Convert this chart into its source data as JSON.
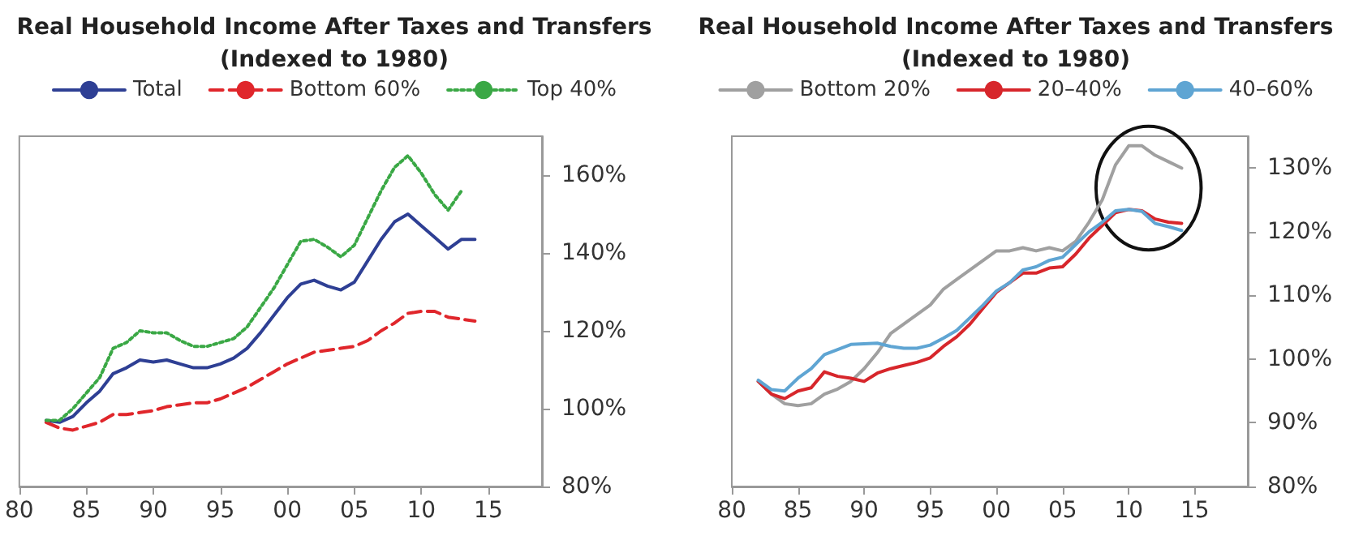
{
  "chart_data": [
    {
      "type": "line",
      "title": "Real Household Income After Taxes and Transfers\n(Indexed to 1980)",
      "x": [
        1982,
        1983,
        1984,
        1985,
        1986,
        1987,
        1988,
        1989,
        1990,
        1991,
        1992,
        1993,
        1994,
        1995,
        1996,
        1997,
        1998,
        1999,
        2000,
        2001,
        2002,
        2003,
        2004,
        2005,
        2006,
        2007,
        2008,
        2009,
        2010,
        2011,
        2012,
        2013,
        2014
      ],
      "series": [
        {
          "name": "Total",
          "color": "#2e3f94",
          "line_style": "solid",
          "values": [
            97,
            96.5,
            98,
            101.5,
            104.5,
            109,
            110.5,
            112.5,
            112,
            112.5,
            111.5,
            110.5,
            110.5,
            111.5,
            113,
            115.5,
            119.5,
            124,
            128.5,
            132,
            133,
            131.5,
            130.5,
            132.5,
            138,
            143.5,
            148,
            150,
            147,
            144,
            141,
            143.5,
            143.5
          ]
        },
        {
          "name": "Bottom 60%",
          "color": "#e0262b",
          "line_style": "dashed",
          "values": [
            96.5,
            95,
            94.5,
            95.5,
            96.5,
            98.5,
            98.5,
            99,
            99.5,
            100.5,
            101,
            101.5,
            101.5,
            102.5,
            104,
            105.5,
            107.5,
            109.5,
            111.5,
            113,
            114.5,
            115,
            115.5,
            116,
            117.5,
            120,
            122,
            124.5,
            125,
            125,
            123.5,
            123,
            122.5
          ]
        },
        {
          "name": "Top 40%",
          "color": "#3aa845",
          "line_style": "dotted",
          "values": [
            97,
            97,
            100,
            104,
            108,
            115.5,
            117,
            120,
            119.5,
            119.5,
            117.5,
            116,
            116,
            117,
            118,
            121,
            126,
            131,
            137,
            143,
            143.5,
            141.5,
            139,
            142,
            149,
            156,
            162,
            165,
            160.5,
            155,
            151,
            156,
            null
          ]
        }
      ],
      "xlim": [
        1980,
        2019
      ],
      "xticks": [
        {
          "value": 1980,
          "label": "80"
        },
        {
          "value": 1985,
          "label": "85"
        },
        {
          "value": 1990,
          "label": "90"
        },
        {
          "value": 1995,
          "label": "95"
        },
        {
          "value": 2000,
          "label": "00"
        },
        {
          "value": 2005,
          "label": "05"
        },
        {
          "value": 2010,
          "label": "10"
        },
        {
          "value": 2015,
          "label": "15"
        }
      ],
      "ylim": [
        80,
        170
      ],
      "yticks": [
        {
          "value": 80,
          "label": "80%"
        },
        {
          "value": 100,
          "label": "100%"
        },
        {
          "value": 120,
          "label": "120%"
        },
        {
          "value": 140,
          "label": "140%"
        },
        {
          "value": 160,
          "label": "160%"
        }
      ],
      "grid": false,
      "legend": "top"
    },
    {
      "type": "line",
      "title": "Real Household Income After Taxes and Transfers\n(Indexed to 1980)",
      "x": [
        1982,
        1983,
        1984,
        1985,
        1986,
        1987,
        1988,
        1989,
        1990,
        1991,
        1992,
        1993,
        1994,
        1995,
        1996,
        1997,
        1998,
        1999,
        2000,
        2001,
        2002,
        2003,
        2004,
        2005,
        2006,
        2007,
        2008,
        2009,
        2010,
        2011,
        2012,
        2013,
        2014
      ],
      "series": [
        {
          "name": "Bottom 20%",
          "color": "#a0a0a0",
          "line_style": "solid",
          "values": [
            96.5,
            94.5,
            93,
            92.7,
            93,
            94.5,
            95.3,
            96.5,
            98.5,
            101,
            104,
            105.5,
            107,
            108.5,
            111,
            112.5,
            114,
            115.5,
            117,
            117,
            117.5,
            117,
            117.5,
            117,
            118.5,
            121.5,
            125,
            130.5,
            133.5,
            133.5,
            132,
            131,
            130
          ]
        },
        {
          "name": "20–40%",
          "color": "#d7262b",
          "line_style": "solid",
          "values": [
            96.5,
            94.5,
            93.8,
            95,
            95.5,
            98,
            97.3,
            97,
            96.5,
            97.8,
            98.5,
            99,
            99.5,
            100.2,
            102,
            103.5,
            105.5,
            108,
            110.5,
            112,
            113.5,
            113.5,
            114.3,
            114.5,
            116.5,
            119,
            121,
            123,
            123.5,
            123.3,
            122,
            121.5,
            121.3
          ]
        },
        {
          "name": "40–60%",
          "color": "#5fa5d3",
          "line_style": "solid",
          "values": [
            96.7,
            95.2,
            95,
            97,
            98.5,
            100.7,
            101.5,
            102.3,
            102.4,
            102.5,
            102,
            101.7,
            101.7,
            102.2,
            103.3,
            104.5,
            106.5,
            108.5,
            110.7,
            112,
            114,
            114.5,
            115.5,
            116,
            118,
            120,
            121.5,
            123.3,
            123.5,
            123.2,
            121.3,
            120.8,
            120.2
          ]
        }
      ],
      "xlim": [
        1980,
        2019
      ],
      "xticks": [
        {
          "value": 1980,
          "label": "80"
        },
        {
          "value": 1985,
          "label": "85"
        },
        {
          "value": 1990,
          "label": "90"
        },
        {
          "value": 1995,
          "label": "95"
        },
        {
          "value": 2000,
          "label": "00"
        },
        {
          "value": 2005,
          "label": "05"
        },
        {
          "value": 2010,
          "label": "10"
        },
        {
          "value": 2015,
          "label": "15"
        }
      ],
      "ylim": [
        80,
        135
      ],
      "yticks": [
        {
          "value": 80,
          "label": "80%"
        },
        {
          "value": 90,
          "label": "90%"
        },
        {
          "value": 100,
          "label": "100%"
        },
        {
          "value": 110,
          "label": "110%"
        },
        {
          "value": 120,
          "label": "120%"
        },
        {
          "value": 130,
          "label": "130%"
        }
      ],
      "grid": false,
      "legend": "top"
    }
  ]
}
